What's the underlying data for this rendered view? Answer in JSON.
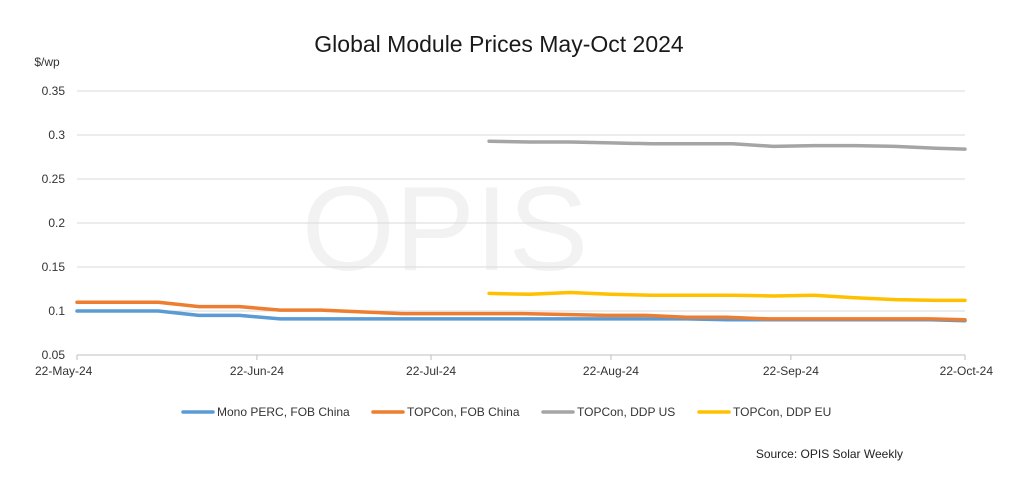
{
  "chart_data": {
    "type": "line",
    "title": "Global Module Prices May-Oct 2024",
    "ylabel": "$/wp",
    "ylim": [
      0.05,
      0.35
    ],
    "yticks": [
      "0.05",
      "0.1",
      "0.15",
      "0.2",
      "0.25",
      "0.3",
      "0.35"
    ],
    "xlim": [
      "2024-05-22",
      "2024-10-22"
    ],
    "xticks": [
      "22-May-24",
      "22-Jun-24",
      "22-Jul-24",
      "22-Aug-24",
      "22-Sep-24",
      "22-Oct-24"
    ],
    "grid": "horizontal",
    "legend_position": "bottom",
    "series": [
      {
        "name": "Mono PERC, FOB China",
        "color": "#5B9BD5",
        "points": [
          {
            "x": "2024-05-22",
            "y": 0.1
          },
          {
            "x": "2024-05-29",
            "y": 0.1
          },
          {
            "x": "2024-06-05",
            "y": 0.1
          },
          {
            "x": "2024-06-12",
            "y": 0.095
          },
          {
            "x": "2024-06-19",
            "y": 0.095
          },
          {
            "x": "2024-06-26",
            "y": 0.091
          },
          {
            "x": "2024-07-03",
            "y": 0.091
          },
          {
            "x": "2024-07-10",
            "y": 0.091
          },
          {
            "x": "2024-07-17",
            "y": 0.091
          },
          {
            "x": "2024-07-24",
            "y": 0.091
          },
          {
            "x": "2024-07-31",
            "y": 0.091
          },
          {
            "x": "2024-08-07",
            "y": 0.091
          },
          {
            "x": "2024-08-14",
            "y": 0.091
          },
          {
            "x": "2024-08-21",
            "y": 0.091
          },
          {
            "x": "2024-08-28",
            "y": 0.091
          },
          {
            "x": "2024-09-04",
            "y": 0.091
          },
          {
            "x": "2024-09-11",
            "y": 0.09
          },
          {
            "x": "2024-09-18",
            "y": 0.09
          },
          {
            "x": "2024-09-25",
            "y": 0.09
          },
          {
            "x": "2024-10-02",
            "y": 0.09
          },
          {
            "x": "2024-10-09",
            "y": 0.09
          },
          {
            "x": "2024-10-16",
            "y": 0.09
          },
          {
            "x": "2024-10-22",
            "y": 0.089
          }
        ]
      },
      {
        "name": "TOPCon, FOB China",
        "color": "#ED7D31",
        "points": [
          {
            "x": "2024-05-22",
            "y": 0.11
          },
          {
            "x": "2024-05-29",
            "y": 0.11
          },
          {
            "x": "2024-06-05",
            "y": 0.11
          },
          {
            "x": "2024-06-12",
            "y": 0.105
          },
          {
            "x": "2024-06-19",
            "y": 0.105
          },
          {
            "x": "2024-06-26",
            "y": 0.101
          },
          {
            "x": "2024-07-03",
            "y": 0.101
          },
          {
            "x": "2024-07-10",
            "y": 0.099
          },
          {
            "x": "2024-07-17",
            "y": 0.097
          },
          {
            "x": "2024-07-24",
            "y": 0.097
          },
          {
            "x": "2024-07-31",
            "y": 0.097
          },
          {
            "x": "2024-08-07",
            "y": 0.097
          },
          {
            "x": "2024-08-14",
            "y": 0.096
          },
          {
            "x": "2024-08-21",
            "y": 0.095
          },
          {
            "x": "2024-08-28",
            "y": 0.095
          },
          {
            "x": "2024-09-04",
            "y": 0.093
          },
          {
            "x": "2024-09-11",
            "y": 0.093
          },
          {
            "x": "2024-09-18",
            "y": 0.091
          },
          {
            "x": "2024-09-25",
            "y": 0.091
          },
          {
            "x": "2024-10-02",
            "y": 0.091
          },
          {
            "x": "2024-10-09",
            "y": 0.091
          },
          {
            "x": "2024-10-16",
            "y": 0.091
          },
          {
            "x": "2024-10-22",
            "y": 0.09
          }
        ]
      },
      {
        "name": "TOPCon, DDP US",
        "color": "#A5A5A5",
        "points": [
          {
            "x": "2024-08-01",
            "y": 0.293
          },
          {
            "x": "2024-08-08",
            "y": 0.292
          },
          {
            "x": "2024-08-15",
            "y": 0.292
          },
          {
            "x": "2024-08-22",
            "y": 0.291
          },
          {
            "x": "2024-08-29",
            "y": 0.29
          },
          {
            "x": "2024-09-05",
            "y": 0.29
          },
          {
            "x": "2024-09-12",
            "y": 0.29
          },
          {
            "x": "2024-09-19",
            "y": 0.287
          },
          {
            "x": "2024-09-26",
            "y": 0.288
          },
          {
            "x": "2024-10-03",
            "y": 0.288
          },
          {
            "x": "2024-10-10",
            "y": 0.287
          },
          {
            "x": "2024-10-17",
            "y": 0.285
          },
          {
            "x": "2024-10-22",
            "y": 0.284
          }
        ]
      },
      {
        "name": "TOPCon, DDP EU",
        "color": "#FFC000",
        "points": [
          {
            "x": "2024-08-01",
            "y": 0.12
          },
          {
            "x": "2024-08-08",
            "y": 0.119
          },
          {
            "x": "2024-08-15",
            "y": 0.121
          },
          {
            "x": "2024-08-22",
            "y": 0.119
          },
          {
            "x": "2024-08-29",
            "y": 0.118
          },
          {
            "x": "2024-09-05",
            "y": 0.118
          },
          {
            "x": "2024-09-12",
            "y": 0.118
          },
          {
            "x": "2024-09-19",
            "y": 0.117
          },
          {
            "x": "2024-09-26",
            "y": 0.118
          },
          {
            "x": "2024-10-03",
            "y": 0.115
          },
          {
            "x": "2024-10-10",
            "y": 0.113
          },
          {
            "x": "2024-10-17",
            "y": 0.112
          },
          {
            "x": "2024-10-22",
            "y": 0.112
          }
        ]
      }
    ],
    "source": "Source: OPIS Solar Weekly"
  },
  "watermark": "OPIS"
}
